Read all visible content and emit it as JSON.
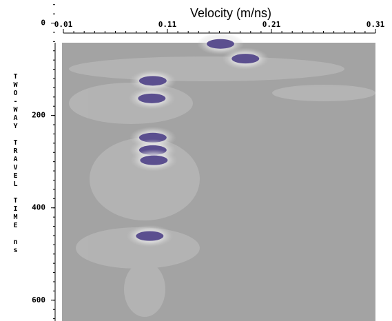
{
  "chart_data": {
    "type": "scatter",
    "title": "Velocity (m/ns)",
    "y_label": "TWO-WAY TRAVEL TIME ns",
    "x": [
      0.161,
      0.185,
      0.096,
      0.095,
      0.096,
      0.096,
      0.097,
      0.093
    ],
    "y": [
      45,
      77,
      125,
      163,
      248,
      275,
      297,
      461
    ],
    "color": "#5b4f8f",
    "xlim": [
      0.01,
      0.31
    ],
    "xticks": [
      0.01,
      0.11,
      0.21,
      0.31
    ],
    "ylim": [
      -50,
      645
    ],
    "yticks": [
      0,
      200,
      400,
      600
    ]
  }
}
